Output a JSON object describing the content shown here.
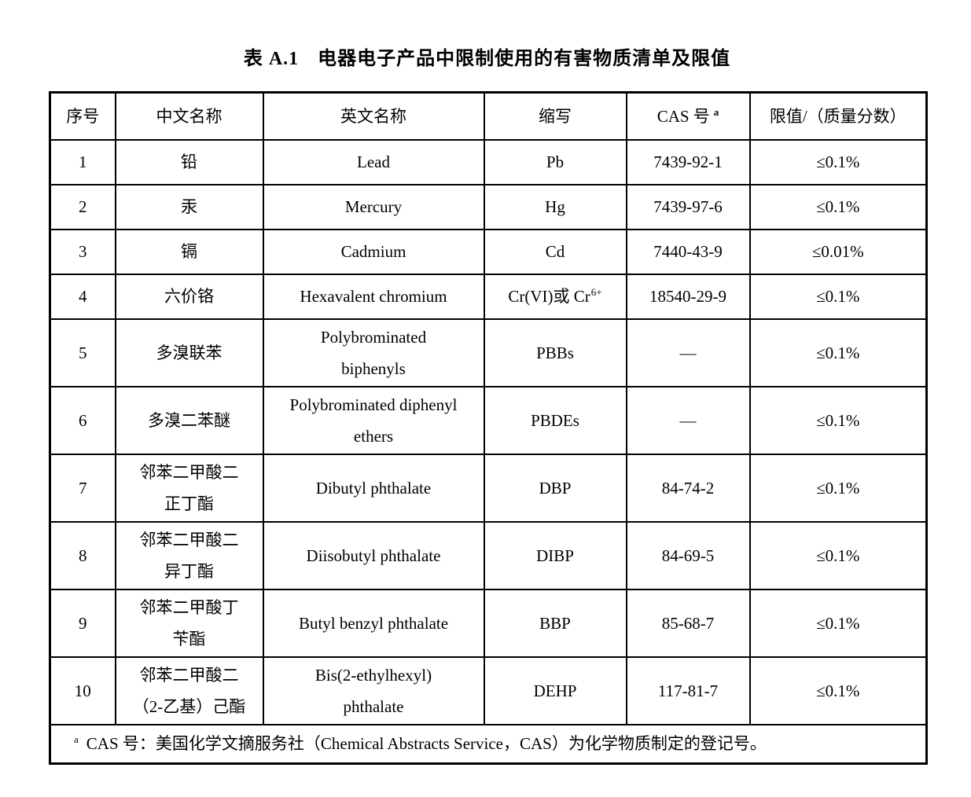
{
  "title": {
    "prefix": "表 A.1",
    "text": "电器电子产品中限制使用的有害物质清单及限值"
  },
  "table": {
    "headers": [
      "序号",
      "中文名称",
      "英文名称",
      "缩写",
      "CAS 号",
      "限值/（质量分数）"
    ],
    "cas_header_superscript": "a",
    "rows": [
      {
        "no": "1",
        "cn": "铅",
        "en": "Lead",
        "abbr": "Pb",
        "cas": "7439-92-1",
        "limit": "≤0.1%"
      },
      {
        "no": "2",
        "cn": "汞",
        "en": "Mercury",
        "abbr": "Hg",
        "cas": "7439-97-6",
        "limit": "≤0.1%"
      },
      {
        "no": "3",
        "cn": "镉",
        "en": "Cadmium",
        "abbr": "Cd",
        "cas": "7440-43-9",
        "limit": "≤0.01%"
      },
      {
        "no": "4",
        "cn": "六价铬",
        "en": "Hexavalent chromium",
        "abbr": "Cr(VI)或 Cr",
        "abbr_sup": "6+",
        "cas": "18540-29-9",
        "limit": "≤0.1%"
      },
      {
        "no": "5",
        "cn": "多溴联苯",
        "en": "Polybrominated\nbiphenyls",
        "abbr": "PBBs",
        "cas": "—",
        "limit": "≤0.1%"
      },
      {
        "no": "6",
        "cn": "多溴二苯醚",
        "en": "Polybrominated diphenyl\nethers",
        "abbr": "PBDEs",
        "cas": "—",
        "limit": "≤0.1%"
      },
      {
        "no": "7",
        "cn": "邻苯二甲酸二\n正丁酯",
        "en": "Dibutyl phthalate",
        "abbr": "DBP",
        "cas": "84-74-2",
        "limit": "≤0.1%"
      },
      {
        "no": "8",
        "cn": "邻苯二甲酸二\n异丁酯",
        "en": "Diisobutyl phthalate",
        "abbr": "DIBP",
        "cas": "84-69-5",
        "limit": "≤0.1%"
      },
      {
        "no": "9",
        "cn": "邻苯二甲酸丁\n苄酯",
        "en": "Butyl benzyl phthalate",
        "abbr": "BBP",
        "cas": "85-68-7",
        "limit": "≤0.1%"
      },
      {
        "no": "10",
        "cn": "邻苯二甲酸二\n（2-乙基）己酯",
        "en": "Bis(2-ethylhexyl)\nphthalate",
        "abbr": "DEHP",
        "cas": "117-81-7",
        "limit": "≤0.1%"
      }
    ],
    "footnote": {
      "marker": "a",
      "text": "CAS 号：美国化学文摘服务社（Chemical Abstracts Service，CAS）为化学物质制定的登记号。"
    }
  }
}
